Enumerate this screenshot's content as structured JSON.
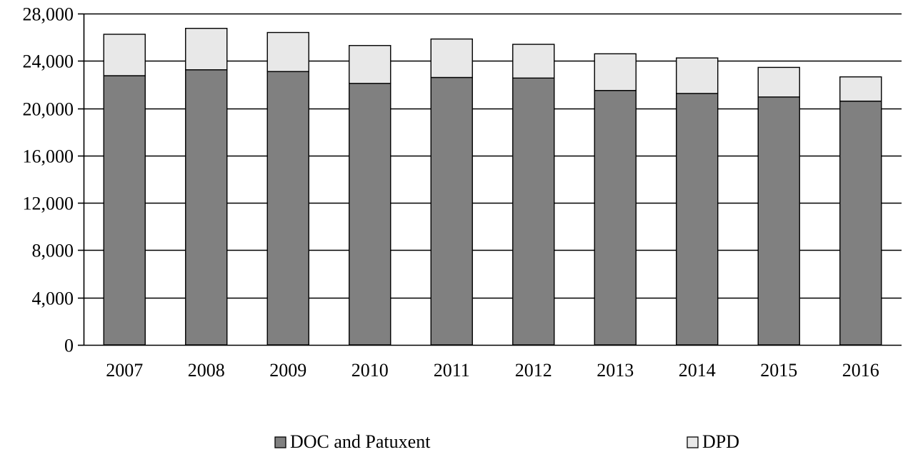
{
  "chart_data": {
    "type": "bar",
    "stacked": true,
    "title": "",
    "xlabel": "",
    "ylabel": "",
    "categories": [
      "2007",
      "2008",
      "2009",
      "2010",
      "2011",
      "2012",
      "2013",
      "2014",
      "2015",
      "2016"
    ],
    "series": [
      {
        "name": "DOC and Patuxent",
        "color": "#808080",
        "values": [
          22750,
          23250,
          23100,
          22100,
          22600,
          22550,
          21500,
          21250,
          20950,
          20600
        ]
      },
      {
        "name": "DPD",
        "color": "#e8e8e8",
        "values": [
          3500,
          3500,
          3300,
          3200,
          3250,
          2850,
          3100,
          3000,
          2500,
          2050
        ]
      }
    ],
    "ylim": [
      0,
      28000
    ],
    "yticks": [
      0,
      4000,
      8000,
      12000,
      16000,
      20000,
      24000,
      28000
    ],
    "ytick_labels": [
      "0",
      "4,000",
      "8,000",
      "12,000",
      "16,000",
      "20,000",
      "24,000",
      "28,000"
    ],
    "grid": "horizontal",
    "legend_position": "bottom"
  }
}
